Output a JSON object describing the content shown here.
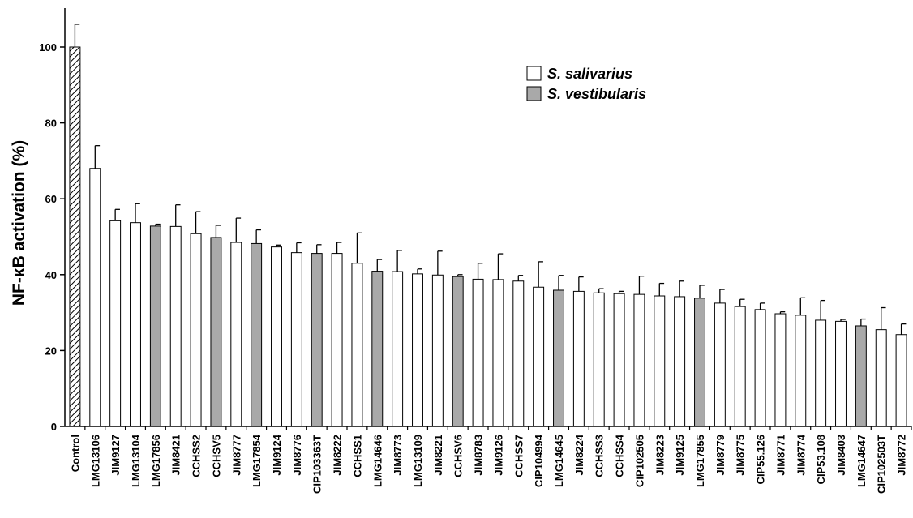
{
  "chart_data": {
    "type": "bar",
    "ylabel": "NF-κB activation (%)",
    "xlabel": "",
    "ylim": [
      0,
      110
    ],
    "yticks": [
      0,
      20,
      40,
      60,
      80,
      100
    ],
    "grid": false,
    "legend_position": "top-right",
    "legend": [
      {
        "label": "S. salivarius",
        "style": "white"
      },
      {
        "label": "S. vestibularis",
        "style": "gray"
      }
    ],
    "categories": [
      "Control",
      "LMG13106",
      "JIM9127",
      "LMG13104",
      "LMG17856",
      "JIM8421",
      "CCHSS2",
      "CCHSV5",
      "JIM8777",
      "LMG17854",
      "JIM9124",
      "JIM8776",
      "CIP103363T",
      "JIM8222",
      "CCHSS1",
      "LMG14646",
      "JIM8773",
      "LMG13109",
      "JIM8221",
      "CCHSV6",
      "JIM8783",
      "JIM9126",
      "CCHSS7",
      "CIP104994",
      "LMG14645",
      "JIM8224",
      "CCHSS3",
      "CCHSS4",
      "CIP102505",
      "JIM8223",
      "JIM9125",
      "LMG17855",
      "JIM8779",
      "JIM8775",
      "CIP55.126",
      "JIM8771",
      "JIM8774",
      "CIP53.108",
      "JIM8403",
      "LMG14647",
      "CIP102503T",
      "JIM8772"
    ],
    "values": [
      100,
      68,
      54.2,
      53.7,
      52.8,
      52.7,
      50.8,
      49.8,
      48.5,
      48.2,
      47.3,
      45.8,
      45.6,
      45.6,
      43,
      40.9,
      40.8,
      40.2,
      39.9,
      39.5,
      38.8,
      38.7,
      38.3,
      36.7,
      35.9,
      35.6,
      35.2,
      35,
      34.8,
      34.4,
      34.2,
      33.8,
      32.5,
      31.6,
      30.8,
      29.7,
      29.3,
      28,
      27.7,
      26.5,
      25.5,
      24.2
    ],
    "errors": [
      6,
      6,
      3,
      5,
      0.5,
      5.7,
      5.8,
      3.2,
      6.4,
      3.6,
      0.5,
      2.6,
      2.3,
      2.9,
      8,
      3.1,
      5.6,
      1.3,
      6.3,
      0.5,
      4.2,
      6.8,
      1.5,
      6.7,
      3.9,
      3.8,
      1.1,
      0.6,
      4.8,
      3.3,
      4.1,
      3.4,
      3.6,
      1.9,
      1.7,
      0.5,
      4.6,
      5.2,
      0.5,
      1.8,
      5.8,
      2.8
    ],
    "groups": [
      "control",
      "salivarius",
      "salivarius",
      "salivarius",
      "vestibularis",
      "salivarius",
      "salivarius",
      "vestibularis",
      "salivarius",
      "vestibularis",
      "salivarius",
      "salivarius",
      "vestibularis",
      "salivarius",
      "salivarius",
      "vestibularis",
      "salivarius",
      "salivarius",
      "salivarius",
      "vestibularis",
      "salivarius",
      "salivarius",
      "salivarius",
      "salivarius",
      "vestibularis",
      "salivarius",
      "salivarius",
      "salivarius",
      "salivarius",
      "salivarius",
      "salivarius",
      "vestibularis",
      "salivarius",
      "salivarius",
      "salivarius",
      "salivarius",
      "salivarius",
      "salivarius",
      "salivarius",
      "vestibularis",
      "salivarius",
      "salivarius"
    ],
    "colors": {
      "salivarius": "#ffffff",
      "vestibularis": "#a9a9a9",
      "control_hatch": "#000000",
      "stroke": "#000000"
    }
  }
}
